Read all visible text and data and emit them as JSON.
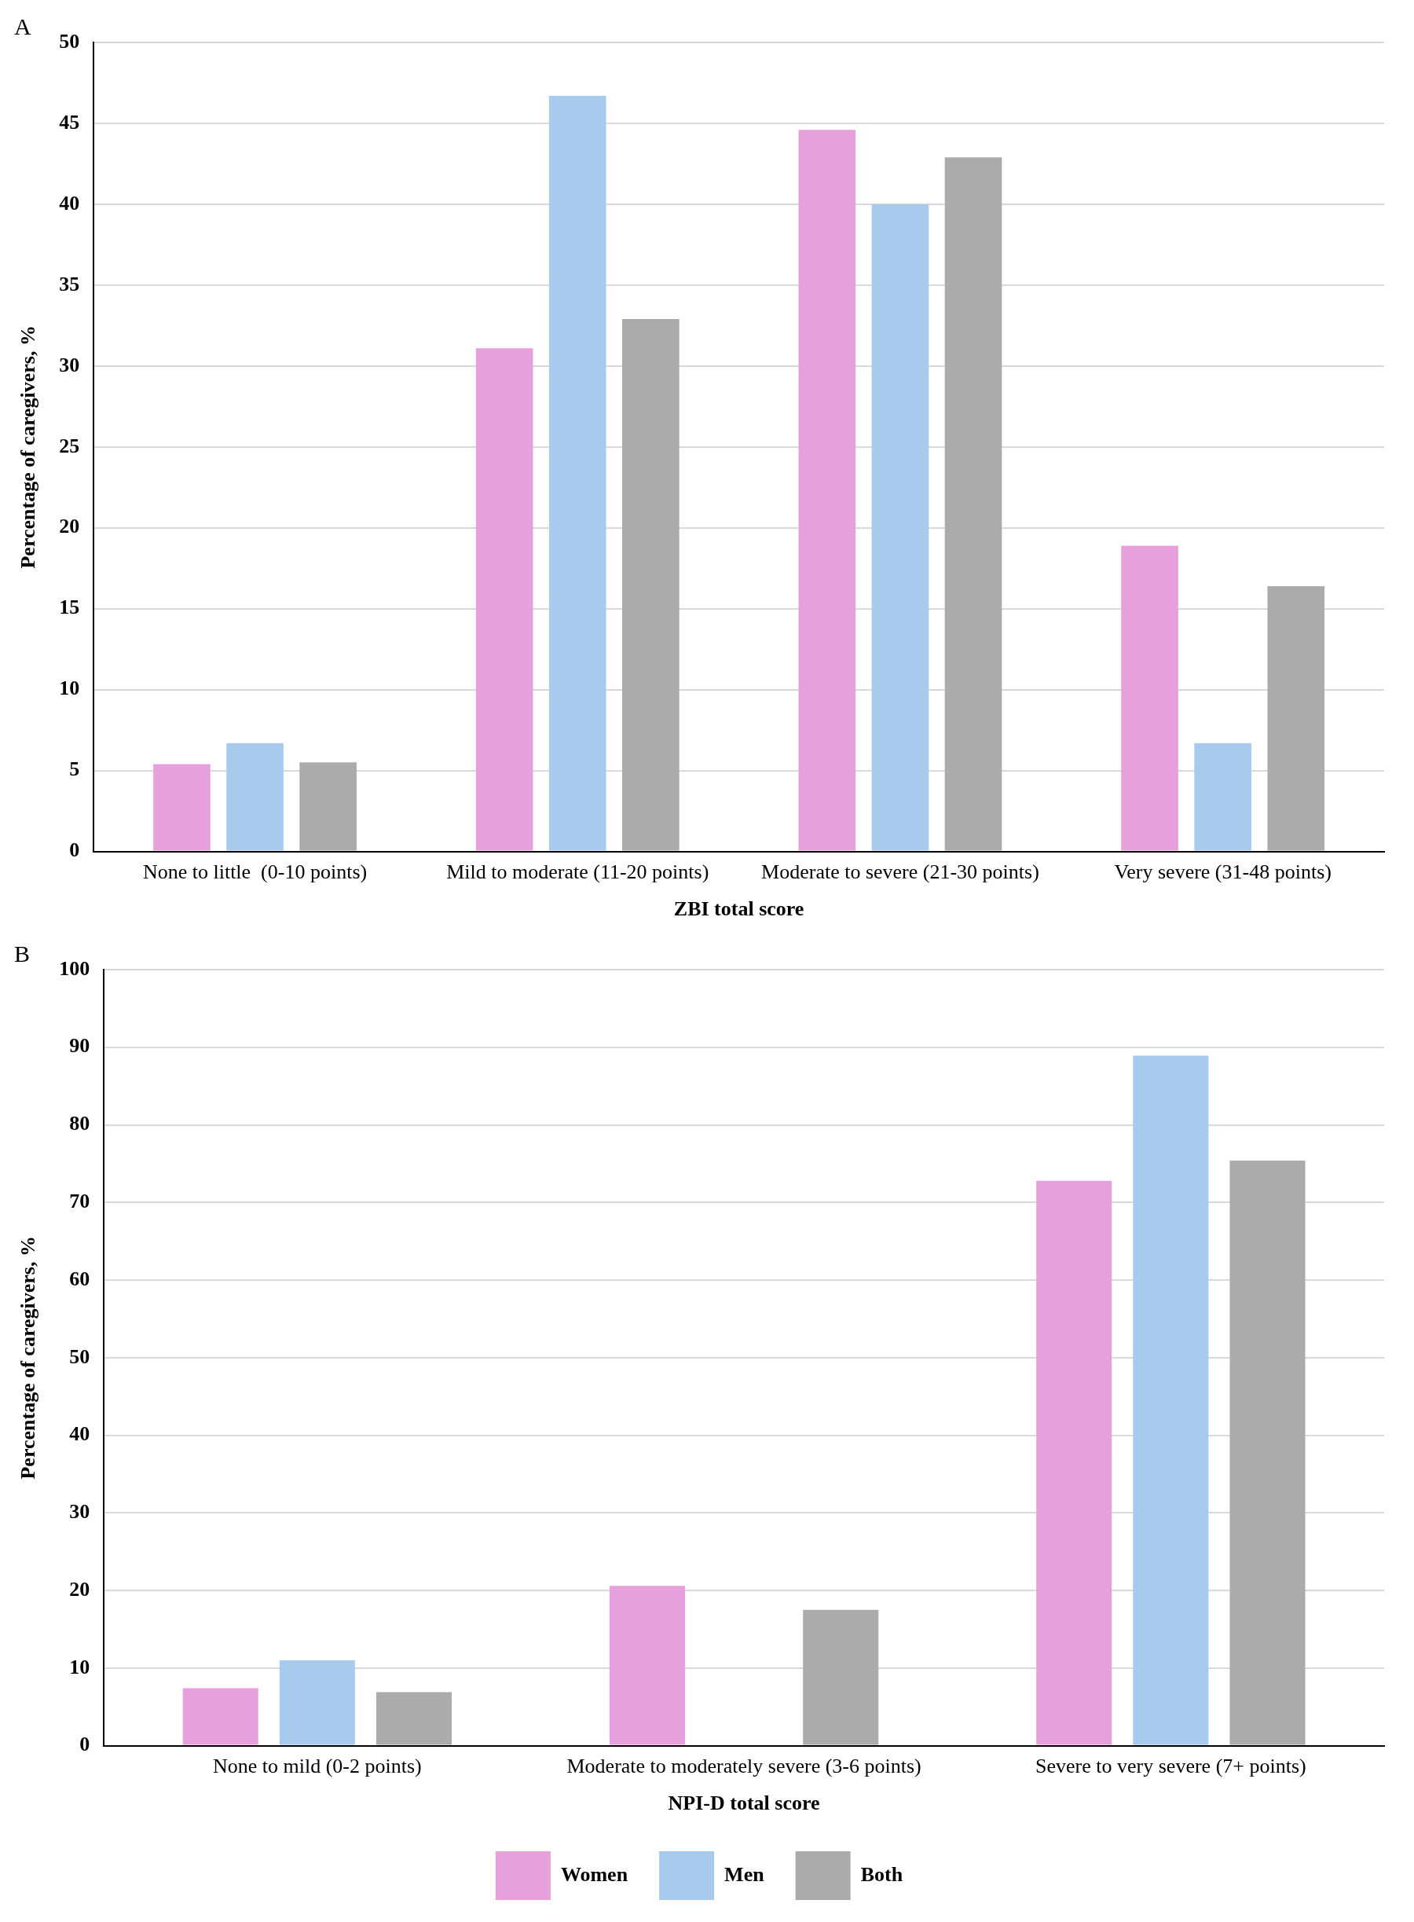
{
  "chart_data": [
    {
      "type": "bar",
      "title": "A",
      "xlabel": "ZBI total score",
      "ylabel": "Percentage of caregivers, %",
      "categories": [
        "None to little  (0-10 points)",
        "Mild to moderate (11-20 points)",
        "Moderate to severe (21-30 points)",
        "Very severe (31-48 points)"
      ],
      "series": [
        {
          "color": "#e6a0dc",
          "values": [
            5.4,
            31.1,
            44.6,
            18.9
          ]
        },
        {
          "color": "#a8caec",
          "values": [
            6.7,
            46.7,
            40.0,
            6.7
          ]
        },
        {
          "color": "#ababab",
          "values": [
            5.5,
            32.9,
            42.9,
            16.4
          ]
        }
      ],
      "ylim": [
        0,
        50
      ],
      "yticks": [
        0,
        5,
        10,
        15,
        20,
        25,
        30,
        35,
        40,
        45,
        50
      ],
      "grid": "y",
      "legend": false
    },
    {
      "type": "bar",
      "title": "B",
      "xlabel": "NPI-D total score",
      "ylabel": "Percentage of caregivers, %",
      "categories": [
        "None to mild (0-2 points)",
        "Moderate to moderately severe (3-6 points)",
        "Severe to very severe (7+ points)"
      ],
      "series": [
        {
          "name": "Women",
          "color": "#e6a0dc",
          "values": [
            7.4,
            20.6,
            72.8
          ]
        },
        {
          "name": "Men",
          "color": "#a8caec",
          "values": [
            11.0,
            0,
            88.9
          ]
        },
        {
          "name": "Both",
          "color": "#ababab",
          "values": [
            6.9,
            17.5,
            75.4
          ]
        }
      ],
      "ylim": [
        0,
        100
      ],
      "yticks": [
        0,
        10,
        20,
        30,
        40,
        50,
        60,
        70,
        80,
        90,
        100
      ],
      "grid": "y",
      "legend": "bottom"
    }
  ]
}
